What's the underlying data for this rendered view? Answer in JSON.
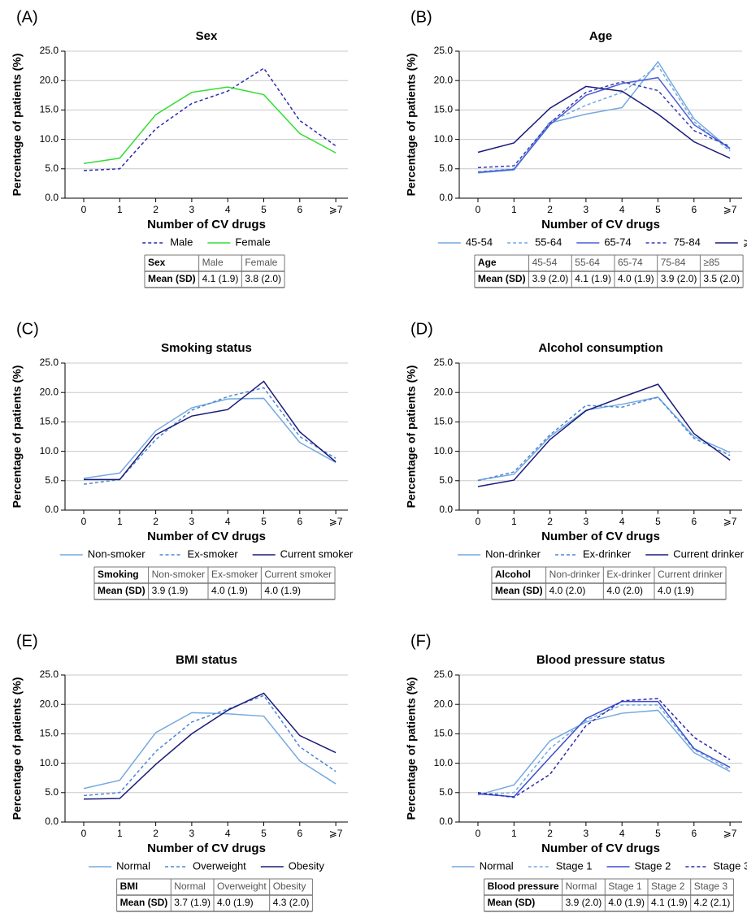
{
  "chart_data": [
    {
      "type": "line",
      "panel": "(A)",
      "title": "Sex",
      "x_label": "Number of CV drugs",
      "y_label": "Percentage of patients (%)",
      "categories": [
        "0",
        "1",
        "2",
        "3",
        "4",
        "5",
        "6",
        "⩾7"
      ],
      "series": [
        {
          "name": "Male",
          "color": "#2b2bb0",
          "dash": true,
          "values": [
            4.7,
            5.0,
            11.8,
            16.1,
            18.2,
            22.1,
            13.2,
            8.9
          ]
        },
        {
          "name": "Female",
          "color": "#33dd33",
          "dash": false,
          "values": [
            5.9,
            6.8,
            14.2,
            18.0,
            18.9,
            17.6,
            11.0,
            7.7
          ]
        }
      ],
      "ylim": [
        0,
        25
      ],
      "yticks": [
        {
          "value": 0,
          "label": "0.0"
        },
        {
          "value": 5,
          "label": "5.0"
        },
        {
          "value": 10,
          "label": "10.0"
        },
        {
          "value": 15,
          "label": "15.0"
        },
        {
          "value": 20,
          "label": "20.0"
        },
        {
          "value": 25,
          "label": "25.0"
        }
      ],
      "grid": true,
      "table": [
        [
          "Sex",
          "Male",
          "Female"
        ],
        [
          "Mean (SD)",
          "4.1 (1.9)",
          "3.8 (2.0)"
        ]
      ]
    },
    {
      "type": "line",
      "panel": "(B)",
      "title": "Age",
      "x_label": "Number of CV drugs",
      "y_label": "Percentage of patients (%)",
      "categories": [
        "0",
        "1",
        "2",
        "3",
        "4",
        "5",
        "6",
        "⩾7"
      ],
      "series": [
        {
          "name": "45-54",
          "color": "#74a9e0",
          "dash": false,
          "values": [
            4.3,
            4.8,
            12.8,
            14.3,
            15.4,
            23.2,
            13.5,
            8.3
          ]
        },
        {
          "name": "55-64",
          "color": "#74a9e0",
          "dash": true,
          "values": [
            4.5,
            5.0,
            13.0,
            15.8,
            18.0,
            22.5,
            13.0,
            8.0
          ]
        },
        {
          "name": "65-74",
          "color": "#4a5fd6",
          "dash": false,
          "values": [
            4.4,
            4.9,
            12.5,
            17.5,
            19.5,
            20.5,
            12.5,
            8.5
          ]
        },
        {
          "name": "75-84",
          "color": "#3a3ab8",
          "dash": true,
          "values": [
            5.2,
            5.5,
            12.8,
            18.0,
            19.8,
            18.3,
            11.5,
            8.8
          ]
        },
        {
          "name": "⩾85",
          "color": "#1a1a7a",
          "dash": false,
          "values": [
            7.8,
            9.4,
            15.3,
            19.0,
            18.2,
            14.3,
            9.6,
            6.8
          ]
        }
      ],
      "ylim": [
        0,
        25
      ],
      "yticks": [
        {
          "value": 0,
          "label": "0.0"
        },
        {
          "value": 5,
          "label": "5.0"
        },
        {
          "value": 10,
          "label": "10.0"
        },
        {
          "value": 15,
          "label": "15.0"
        },
        {
          "value": 20,
          "label": "20.0"
        },
        {
          "value": 25,
          "label": "25.0"
        }
      ],
      "grid": true,
      "table": [
        [
          "Age",
          "45-54",
          "55-64",
          "65-74",
          "75-84",
          "≥85"
        ],
        [
          "Mean (SD)",
          "3.9 (2.0)",
          "4.1 (1.9)",
          "4.0 (1.9)",
          "3.9 (2.0)",
          "3.5 (2.0)"
        ]
      ]
    },
    {
      "type": "line",
      "panel": "(C)",
      "title": "Smoking status",
      "x_label": "Number of CV drugs",
      "y_label": "Percentage of patients (%)",
      "categories": [
        "0",
        "1",
        "2",
        "3",
        "4",
        "5",
        "6",
        "⩾7"
      ],
      "series": [
        {
          "name": "Non-smoker",
          "color": "#74a9e0",
          "dash": false,
          "values": [
            5.4,
            6.3,
            13.5,
            17.4,
            18.9,
            19.0,
            11.5,
            8.1
          ]
        },
        {
          "name": "Ex-smoker",
          "color": "#4a86d6",
          "dash": true,
          "values": [
            4.4,
            5.2,
            12.0,
            17.0,
            19.3,
            20.8,
            12.5,
            8.8
          ]
        },
        {
          "name": "Current smoker",
          "color": "#1a1a7a",
          "dash": false,
          "values": [
            5.2,
            5.2,
            12.8,
            16.0,
            17.1,
            21.9,
            13.3,
            8.2
          ]
        }
      ],
      "ylim": [
        0,
        25
      ],
      "yticks": [
        {
          "value": 0,
          "label": "0.0"
        },
        {
          "value": 5,
          "label": "5.0"
        },
        {
          "value": 10,
          "label": "10.0"
        },
        {
          "value": 15,
          "label": "15.0"
        },
        {
          "value": 20,
          "label": "20.0"
        },
        {
          "value": 25,
          "label": "25.0"
        }
      ],
      "grid": true,
      "table": [
        [
          "Smoking",
          "Non-smoker",
          "Ex-smoker",
          "Current smoker"
        ],
        [
          "Mean (SD)",
          "3.9 (1.9)",
          "4.0 (1.9)",
          "4.0 (1.9)"
        ]
      ]
    },
    {
      "type": "line",
      "panel": "(D)",
      "title": "Alcohol consumption",
      "x_label": "Number of CV drugs",
      "y_label": "Percentage of patients (%)",
      "categories": [
        "0",
        "1",
        "2",
        "3",
        "4",
        "5",
        "6",
        "⩾7"
      ],
      "series": [
        {
          "name": "Non-drinker",
          "color": "#74a9e0",
          "dash": false,
          "values": [
            5.1,
            6.1,
            12.5,
            17.0,
            18.0,
            19.2,
            12.5,
            9.8
          ]
        },
        {
          "name": "Ex-drinker",
          "color": "#4a86d6",
          "dash": true,
          "values": [
            5.0,
            6.5,
            12.8,
            17.8,
            17.5,
            19.2,
            12.2,
            9.3
          ]
        },
        {
          "name": "Current drinker",
          "color": "#1a1a7a",
          "dash": false,
          "values": [
            4.0,
            5.1,
            12.0,
            16.9,
            19.2,
            21.4,
            13.0,
            8.5
          ]
        }
      ],
      "ylim": [
        0,
        25
      ],
      "yticks": [
        {
          "value": 0,
          "label": "0.0"
        },
        {
          "value": 5,
          "label": "5.0"
        },
        {
          "value": 10,
          "label": "10.0"
        },
        {
          "value": 15,
          "label": "15.0"
        },
        {
          "value": 20,
          "label": "20.0"
        },
        {
          "value": 25,
          "label": "25.0"
        }
      ],
      "grid": true,
      "table": [
        [
          "Alcohol",
          "Non-drinker",
          "Ex-drinker",
          "Current drinker"
        ],
        [
          "Mean (SD)",
          "4.0 (2.0)",
          "4.0 (2.0)",
          "4.0 (1.9)"
        ]
      ]
    },
    {
      "type": "line",
      "panel": "(E)",
      "title": "BMI status",
      "x_label": "Number of CV drugs",
      "y_label": "Percentage of patients (%)",
      "categories": [
        "0",
        "1",
        "2",
        "3",
        "4",
        "5",
        "6",
        "⩾7"
      ],
      "series": [
        {
          "name": "Normal",
          "color": "#74a9e0",
          "dash": false,
          "values": [
            5.7,
            7.1,
            15.2,
            18.6,
            18.4,
            18.0,
            10.4,
            6.5
          ]
        },
        {
          "name": "Overweight",
          "color": "#4a86d6",
          "dash": true,
          "values": [
            4.5,
            5.0,
            12.0,
            17.0,
            19.2,
            21.5,
            12.8,
            8.6
          ]
        },
        {
          "name": "Obesity",
          "color": "#1a1a7a",
          "dash": false,
          "values": [
            3.9,
            4.0,
            9.8,
            15.0,
            19.0,
            21.9,
            14.7,
            11.8
          ]
        }
      ],
      "ylim": [
        0,
        25
      ],
      "yticks": [
        {
          "value": 0,
          "label": "0.0"
        },
        {
          "value": 5,
          "label": "5.0"
        },
        {
          "value": 10,
          "label": "10.0"
        },
        {
          "value": 15,
          "label": "15.0"
        },
        {
          "value": 20,
          "label": "20.0"
        },
        {
          "value": 25,
          "label": "25.0"
        }
      ],
      "grid": true,
      "table": [
        [
          "BMI",
          "Normal",
          "Overweight",
          "Obesity"
        ],
        [
          "Mean (SD)",
          "3.7 (1.9)",
          "4.0 (1.9)",
          "4.3 (2.0)"
        ]
      ]
    },
    {
      "type": "line",
      "panel": "(F)",
      "title": "Blood pressure status",
      "x_label": "Number of CV drugs",
      "y_label": "Percentage of patients (%)",
      "categories": [
        "0",
        "1",
        "2",
        "3",
        "4",
        "5",
        "6",
        "⩾7"
      ],
      "series": [
        {
          "name": "Normal",
          "color": "#74a9e0",
          "dash": false,
          "values": [
            4.6,
            6.3,
            13.8,
            17.0,
            18.5,
            19.0,
            11.8,
            8.6
          ]
        },
        {
          "name": "Stage 1",
          "color": "#74a9e0",
          "dash": true,
          "values": [
            4.7,
            5.0,
            12.5,
            17.3,
            19.9,
            19.9,
            12.3,
            8.9
          ]
        },
        {
          "name": "Stage 2",
          "color": "#3a4fd0",
          "dash": false,
          "values": [
            4.8,
            4.3,
            11.0,
            17.6,
            20.5,
            20.5,
            12.5,
            9.3
          ]
        },
        {
          "name": "Stage 3",
          "color": "#2b2bb0",
          "dash": true,
          "values": [
            5.0,
            4.2,
            8.1,
            16.4,
            20.6,
            21.0,
            14.4,
            10.6
          ]
        }
      ],
      "ylim": [
        0,
        25
      ],
      "yticks": [
        {
          "value": 0,
          "label": "0.0"
        },
        {
          "value": 5,
          "label": "5.0"
        },
        {
          "value": 10,
          "label": "10.0"
        },
        {
          "value": 15,
          "label": "15.0"
        },
        {
          "value": 20,
          "label": "20.0"
        },
        {
          "value": 25,
          "label": "25.0"
        }
      ],
      "grid": true,
      "table": [
        [
          "Blood pressure",
          "Normal",
          "Stage 1",
          "Stage 2",
          "Stage 3"
        ],
        [
          "Mean (SD)",
          "3.9 (2.0)",
          "4.0 (1.9)",
          "4.1 (1.9)",
          "4.2 (2.1)"
        ]
      ]
    }
  ]
}
